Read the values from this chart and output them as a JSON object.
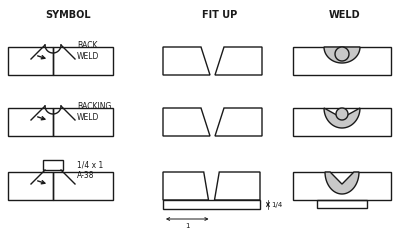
{
  "title_symbol": "SYMBOL",
  "title_fitup": "FIT UP",
  "title_weld": "WELD",
  "bg_color": "#ffffff",
  "line_color": "#1a1a1a",
  "gray_fill": "#c8c8c8",
  "annotation_back": "BACK\nWELD",
  "annotation_backing": "BACKING\nWELD",
  "annotation_plug": "1/4 x 1\nA-38",
  "dim_1": "1",
  "dim_14": "1/4"
}
